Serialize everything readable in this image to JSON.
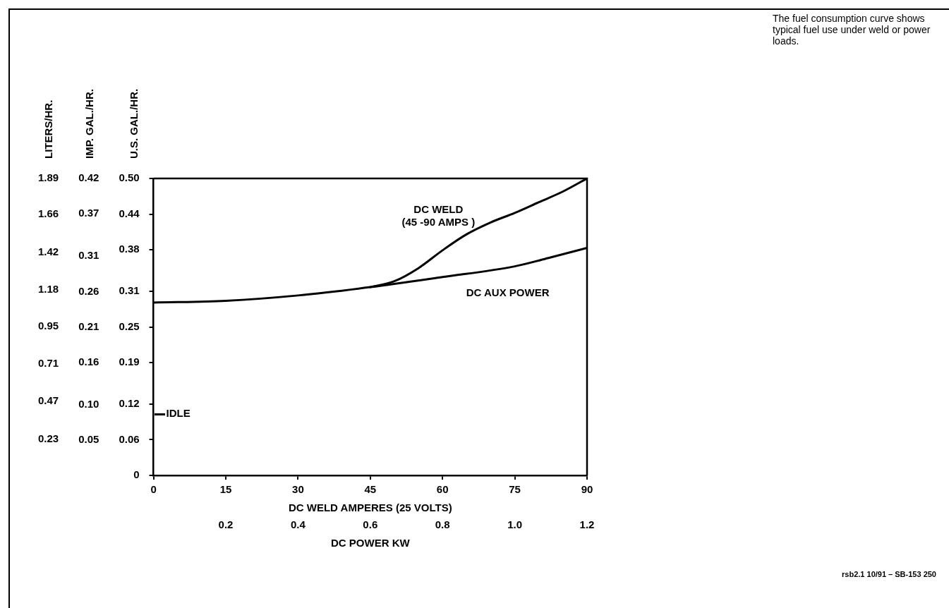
{
  "chart_data": {
    "type": "line",
    "xlabel": "DC WELD AMPERES (25 VOLTS)",
    "x2label": "DC POWER KW",
    "ylabel": "U.S. GAL./HR.",
    "y2label": "IMP. GAL./HR.",
    "y3label": "LITERS/HR.",
    "series": [
      {
        "name": "DC WELD (45 -90 AMPS )",
        "color": "#000000",
        "x": [
          45,
          50,
          55,
          60,
          65,
          70,
          75,
          80,
          85,
          90
        ],
        "values": [
          0.317,
          0.327,
          0.349,
          0.379,
          0.406,
          0.426,
          0.442,
          0.46,
          0.478,
          0.5
        ]
      },
      {
        "name": "DC AUX POWER",
        "color": "#000000",
        "x": [
          0,
          15,
          30,
          45,
          60,
          75,
          82,
          90
        ],
        "values": [
          0.291,
          0.294,
          0.303,
          0.317,
          0.334,
          0.352,
          0.366,
          0.383
        ]
      }
    ],
    "xlim": [
      0,
      90
    ],
    "xticks": [
      0,
      15,
      30,
      45,
      60,
      75,
      90
    ],
    "x2lim": [
      0,
      1.2
    ],
    "x2ticks": [
      0.2,
      0.4,
      0.6,
      0.8,
      {
        "value": 1.0,
        "label": "1.0"
      },
      1.2
    ],
    "ylim": [
      0,
      0.5
    ],
    "yticks": [
      0,
      0.06,
      0.12,
      0.19,
      0.25,
      0.31,
      0.38,
      0.44,
      {
        "value": 0.5,
        "label": "0.50"
      }
    ],
    "y2lim": [
      0,
      0.42
    ],
    "y2ticks": [
      0.05,
      {
        "value": 0.1,
        "label": "0.10"
      },
      0.16,
      0.21,
      0.26,
      0.31,
      0.37,
      0.42
    ],
    "y3lim": [
      0,
      1.89
    ],
    "y3ticks": [
      0.23,
      0.47,
      0.71,
      0.95,
      1.18,
      1.42,
      1.66,
      1.89
    ],
    "annotations": [
      "The fuel consumption curve shows typical fuel use under weld or power loads.",
      "rsb2.1 10/91 – SB-153 250",
      "IDLE"
    ],
    "grid": false,
    "legend": false,
    "marker": "none",
    "line_style": "solid"
  }
}
